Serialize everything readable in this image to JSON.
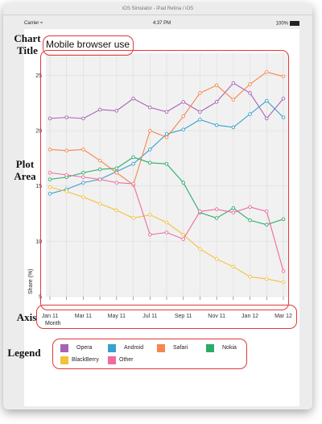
{
  "simulator": {
    "window_title": "iOS Simulator - iPad Retina / iOS",
    "carrier": "Carrier",
    "time": "4:37 PM",
    "battery": "100%"
  },
  "annotations": {
    "chart_title_label": "Chart Title",
    "plot_area_label": "Plot Area",
    "axis_label": "Axis",
    "legend_label": "Legend"
  },
  "chart_data": {
    "type": "line",
    "title": "Mobile browser use",
    "xlabel": "Month",
    "ylabel": "Share (%)",
    "ylim": [
      5,
      27
    ],
    "yticks": [
      5,
      10,
      15,
      20,
      25
    ],
    "x": [
      "Jan 11",
      "Feb 11",
      "Mar 11",
      "Apr 11",
      "May 11",
      "Jun 11",
      "Jul 11",
      "Aug 11",
      "Sep 11",
      "Oct 11",
      "Nov 11",
      "Dec 11",
      "Jan 12",
      "Feb 12",
      "Mar 12"
    ],
    "xtick_labels": [
      "Jan 11",
      "",
      "Mar 11",
      "",
      "May 11",
      "",
      "Jul 11",
      "",
      "Sep 11",
      "",
      "Nov 11",
      "",
      "Jan 12",
      "",
      "Mar 12"
    ],
    "grid": true,
    "legend_position": "bottom",
    "series": [
      {
        "name": "Opera",
        "color": "#a862b5",
        "values": [
          21.1,
          21.2,
          21.1,
          21.9,
          21.8,
          22.9,
          22.1,
          21.7,
          22.6,
          21.7,
          22.6,
          24.3,
          23.4,
          21.1,
          22.9
        ]
      },
      {
        "name": "Android",
        "color": "#3aa0cc",
        "values": [
          14.3,
          14.7,
          15.3,
          15.6,
          16.3,
          17.0,
          18.3,
          19.7,
          20.1,
          21.0,
          20.5,
          20.3,
          21.5,
          22.7,
          21.2
        ]
      },
      {
        "name": "Safari",
        "color": "#f5864c",
        "values": [
          18.3,
          18.2,
          18.3,
          17.3,
          16.2,
          15.1,
          20.0,
          19.4,
          21.3,
          23.4,
          24.1,
          22.8,
          24.2,
          25.3,
          24.9
        ]
      },
      {
        "name": "Nokia",
        "color": "#2caa6a",
        "values": [
          15.6,
          15.8,
          16.2,
          16.5,
          16.6,
          17.6,
          17.1,
          17.0,
          15.3,
          12.6,
          12.1,
          13.0,
          11.9,
          11.5,
          12.0
        ]
      },
      {
        "name": "BlackBerry",
        "color": "#f2c13a",
        "values": [
          14.9,
          14.5,
          14.0,
          13.4,
          12.8,
          12.1,
          12.4,
          11.7,
          10.6,
          9.3,
          8.4,
          7.7,
          6.8,
          6.6,
          6.3
        ]
      },
      {
        "name": "Other",
        "color": "#ee6b9c",
        "values": [
          16.2,
          16.0,
          15.8,
          15.6,
          15.3,
          15.2,
          10.6,
          10.8,
          10.2,
          12.7,
          12.9,
          12.6,
          13.1,
          12.7,
          7.3
        ]
      }
    ]
  }
}
